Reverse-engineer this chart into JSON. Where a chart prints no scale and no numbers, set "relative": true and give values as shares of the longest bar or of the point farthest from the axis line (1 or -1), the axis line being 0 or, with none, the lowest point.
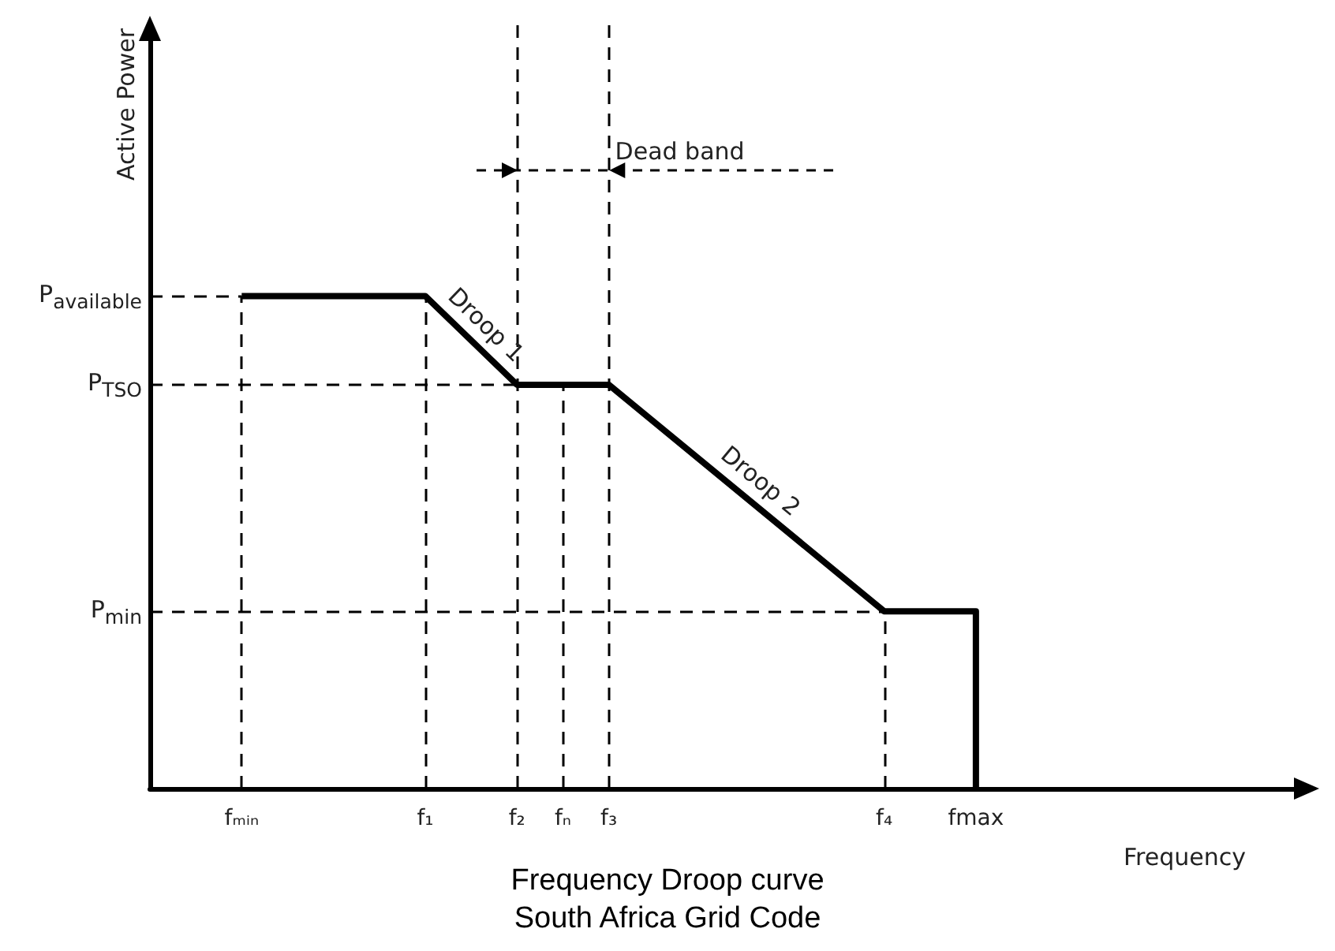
{
  "chart_data": {
    "type": "line",
    "title": "Frequency Droop curve",
    "subtitle": "South Africa Grid Code",
    "xlabel": "Frequency",
    "ylabel": "Active Power",
    "relative": true,
    "categories": [
      null,
      null,
      "fₘᵢₙ",
      null,
      null,
      null,
      "f₁",
      null,
      "f₂",
      "fₙ",
      "f₃",
      null,
      null,
      null,
      null,
      null,
      "f₄",
      null,
      "fmax",
      null,
      null,
      null,
      null,
      null,
      null,
      null
    ],
    "series": [
      {
        "color": "#000000",
        "x": [
          "fₘᵢₙ",
          "f₁",
          "f₂",
          "f₃",
          "f₄",
          "fmax",
          "fmax"
        ],
        "values": [
          1,
          1,
          0.82,
          0.82,
          0.36,
          0.36,
          0
        ]
      }
    ],
    "ref_lines": [
      {
        "axis": "x",
        "value": "fₘᵢₙ"
      },
      {
        "axis": "x",
        "value": "f₁"
      },
      {
        "axis": "x",
        "value": "f₂"
      },
      {
        "axis": "x",
        "value": "fₙ"
      },
      {
        "axis": "x",
        "value": "f₃"
      },
      {
        "axis": "x",
        "value": "f₄"
      },
      {
        "axis": "y",
        "value": 0.36,
        "label": "P$_{min}$"
      },
      {
        "axis": "y",
        "value": 0.82,
        "label": "P$_{TSO}$"
      },
      {
        "axis": "y",
        "value": 1,
        "label": "P$_{available}$"
      }
    ],
    "marker": "none",
    "line_style": "solid",
    "annotations": [
      "Droop 1",
      "Droop 2",
      "Dead band"
    ]
  }
}
